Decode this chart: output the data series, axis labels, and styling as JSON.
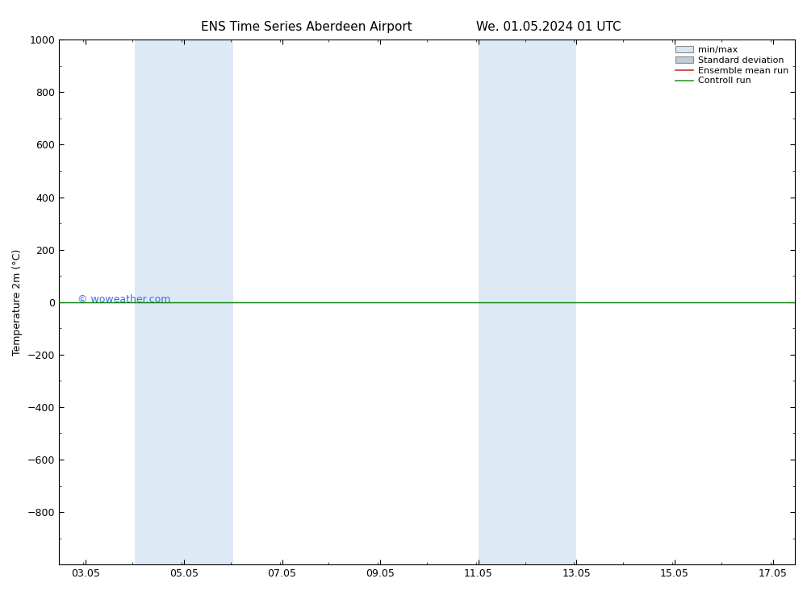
{
  "title_left": "ENS Time Series Aberdeen Airport",
  "title_right": "We. 01.05.2024 01 UTC",
  "ylabel": "Temperature 2m (°C)",
  "ylim_top": -1000,
  "ylim_bottom": 1000,
  "yticks": [
    -800,
    -600,
    -400,
    -200,
    0,
    200,
    400,
    600,
    800,
    1000
  ],
  "xlim_start": 2.5,
  "xlim_end": 17.5,
  "xtick_positions": [
    3.05,
    5.05,
    7.05,
    9.05,
    11.05,
    13.05,
    15.05,
    17.05
  ],
  "xtick_labels": [
    "03.05",
    "05.05",
    "07.05",
    "09.05",
    "11.05",
    "13.05",
    "15.05",
    "17.05"
  ],
  "shaded_bands": [
    {
      "x_start": 4.05,
      "x_end": 6.05
    },
    {
      "x_start": 11.05,
      "x_end": 13.05
    }
  ],
  "shade_color": "#ddeaf5",
  "zero_line_y": 0,
  "zero_line_color": "#008000",
  "watermark": "© woweather.com",
  "watermark_color": "#4169E1",
  "legend_items": [
    {
      "label": "min/max",
      "color": "#d8e8f0",
      "edgecolor": "#888888",
      "type": "fill"
    },
    {
      "label": "Standard deviation",
      "color": "#c0ccda",
      "edgecolor": "#888888",
      "type": "fill"
    },
    {
      "label": "Ensemble mean run",
      "color": "#cc3333",
      "type": "line"
    },
    {
      "label": "Controll run",
      "color": "#339933",
      "type": "line"
    }
  ],
  "bg_color": "#ffffff",
  "plot_bg_color": "#ffffff",
  "title_fontsize": 11,
  "axis_fontsize": 9,
  "tick_fontsize": 9,
  "legend_fontsize": 8
}
